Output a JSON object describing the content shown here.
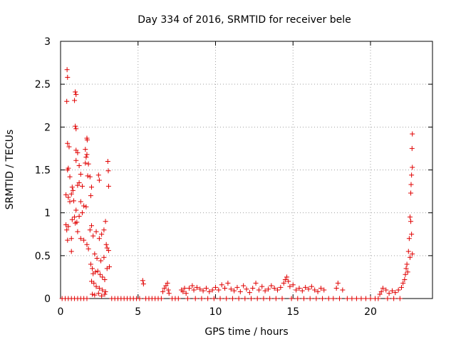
{
  "chart_data": {
    "type": "scatter",
    "title": "Day 334 of 2016, SRMTID for receiver bele",
    "xlabel": "GPS time / hours",
    "ylabel": "SRMTID / TECUs",
    "xlim": [
      0,
      24
    ],
    "ylim": [
      0,
      3
    ],
    "x_ticks": [
      0,
      5,
      10,
      15,
      20
    ],
    "y_ticks": [
      0,
      0.5,
      1,
      1.5,
      2,
      2.5,
      3
    ],
    "x_tick_labels": [
      "0",
      "5",
      "10",
      "15",
      "20"
    ],
    "y_tick_labels": [
      "0",
      "0.5",
      "1",
      "1.5",
      "2",
      "2.5",
      "3"
    ],
    "grid": true,
    "marker": "plus",
    "color": "#e00000",
    "series": [
      {
        "name": "SRMTID",
        "points": [
          [
            0.42,
            2.67
          ],
          [
            0.45,
            2.58
          ],
          [
            0.4,
            2.3
          ],
          [
            0.95,
            2.41
          ],
          [
            1.0,
            2.38
          ],
          [
            0.9,
            2.31
          ],
          [
            0.95,
            2.01
          ],
          [
            1.0,
            1.98
          ],
          [
            0.45,
            1.81
          ],
          [
            0.55,
            1.77
          ],
          [
            1.7,
            1.87
          ],
          [
            1.72,
            1.85
          ],
          [
            0.5,
            1.52
          ],
          [
            0.45,
            1.5
          ],
          [
            0.6,
            1.42
          ],
          [
            0.75,
            1.3
          ],
          [
            0.8,
            1.26
          ],
          [
            0.7,
            1.22
          ],
          [
            0.35,
            1.21
          ],
          [
            0.5,
            1.18
          ],
          [
            0.6,
            1.13
          ],
          [
            0.85,
            1.14
          ],
          [
            1.0,
            1.73
          ],
          [
            1.1,
            1.7
          ],
          [
            1.2,
            1.55
          ],
          [
            1.0,
            1.61
          ],
          [
            1.3,
            1.45
          ],
          [
            1.2,
            1.35
          ],
          [
            1.1,
            1.32
          ],
          [
            1.4,
            1.31
          ],
          [
            1.6,
            1.74
          ],
          [
            1.65,
            1.65
          ],
          [
            1.7,
            1.68
          ],
          [
            1.8,
            1.57
          ],
          [
            1.6,
            1.58
          ],
          [
            1.75,
            1.43
          ],
          [
            1.9,
            1.42
          ],
          [
            2.0,
            1.3
          ],
          [
            1.95,
            1.2
          ],
          [
            1.3,
            1.13
          ],
          [
            1.5,
            1.08
          ],
          [
            1.65,
            1.07
          ],
          [
            1.4,
            1.0
          ],
          [
            1.2,
            0.96
          ],
          [
            1.0,
            1.03
          ],
          [
            0.9,
            0.95
          ],
          [
            0.75,
            0.92
          ],
          [
            0.95,
            0.88
          ],
          [
            1.05,
            0.89
          ],
          [
            0.35,
            0.86
          ],
          [
            0.5,
            0.84
          ],
          [
            0.7,
            0.7
          ],
          [
            0.4,
            0.8
          ],
          [
            0.45,
            0.68
          ],
          [
            0.7,
            0.55
          ],
          [
            1.1,
            0.78
          ],
          [
            1.3,
            0.7
          ],
          [
            1.5,
            0.68
          ],
          [
            1.7,
            0.63
          ],
          [
            1.8,
            0.58
          ],
          [
            1.9,
            0.8
          ],
          [
            2.0,
            0.85
          ],
          [
            2.1,
            0.73
          ],
          [
            2.3,
            0.78
          ],
          [
            2.5,
            0.7
          ],
          [
            2.65,
            0.75
          ],
          [
            2.8,
            0.8
          ],
          [
            2.9,
            0.9
          ],
          [
            2.95,
            0.63
          ],
          [
            3.0,
            0.59
          ],
          [
            3.1,
            0.56
          ],
          [
            3.05,
            1.6
          ],
          [
            3.08,
            1.49
          ],
          [
            3.1,
            1.31
          ],
          [
            2.45,
            1.44
          ],
          [
            2.5,
            1.38
          ],
          [
            2.2,
            0.52
          ],
          [
            2.35,
            0.47
          ],
          [
            2.6,
            0.44
          ],
          [
            2.8,
            0.48
          ],
          [
            1.95,
            0.4
          ],
          [
            2.05,
            0.35
          ],
          [
            2.1,
            0.29
          ],
          [
            2.25,
            0.31
          ],
          [
            2.4,
            0.32
          ],
          [
            2.55,
            0.28
          ],
          [
            2.7,
            0.25
          ],
          [
            2.85,
            0.22
          ],
          [
            3.0,
            0.35
          ],
          [
            3.15,
            0.37
          ],
          [
            2.0,
            0.2
          ],
          [
            2.15,
            0.18
          ],
          [
            2.3,
            0.14
          ],
          [
            2.5,
            0.12
          ],
          [
            2.7,
            0.1
          ],
          [
            2.9,
            0.08
          ],
          [
            2.05,
            0.05
          ],
          [
            2.2,
            0.04
          ],
          [
            2.45,
            0.06
          ],
          [
            2.65,
            0.03
          ],
          [
            2.85,
            0.05
          ],
          [
            5.3,
            0.21
          ],
          [
            5.35,
            0.17
          ],
          [
            6.6,
            0.08
          ],
          [
            6.7,
            0.12
          ],
          [
            6.8,
            0.15
          ],
          [
            6.9,
            0.18
          ],
          [
            6.95,
            0.1
          ],
          [
            7.0,
            0.06
          ],
          [
            7.8,
            0.1
          ],
          [
            7.9,
            0.08
          ],
          [
            8.0,
            0.12
          ],
          [
            8.1,
            0.06
          ],
          [
            8.3,
            0.12
          ],
          [
            8.5,
            0.15
          ],
          [
            8.6,
            0.1
          ],
          [
            8.8,
            0.13
          ],
          [
            9.0,
            0.11
          ],
          [
            9.2,
            0.09
          ],
          [
            9.4,
            0.12
          ],
          [
            9.6,
            0.08
          ],
          [
            9.8,
            0.1
          ],
          [
            10.0,
            0.13
          ],
          [
            10.2,
            0.1
          ],
          [
            10.4,
            0.16
          ],
          [
            10.6,
            0.12
          ],
          [
            10.8,
            0.18
          ],
          [
            11.0,
            0.11
          ],
          [
            11.2,
            0.09
          ],
          [
            11.4,
            0.13
          ],
          [
            11.6,
            0.08
          ],
          [
            11.8,
            0.15
          ],
          [
            12.0,
            0.11
          ],
          [
            12.2,
            0.07
          ],
          [
            12.4,
            0.12
          ],
          [
            12.6,
            0.18
          ],
          [
            12.8,
            0.1
          ],
          [
            13.0,
            0.14
          ],
          [
            13.2,
            0.09
          ],
          [
            13.4,
            0.11
          ],
          [
            13.6,
            0.15
          ],
          [
            13.8,
            0.12
          ],
          [
            14.0,
            0.1
          ],
          [
            14.2,
            0.13
          ],
          [
            14.4,
            0.18
          ],
          [
            14.5,
            0.22
          ],
          [
            14.6,
            0.25
          ],
          [
            14.7,
            0.2
          ],
          [
            14.8,
            0.14
          ],
          [
            15.0,
            0.16
          ],
          [
            15.2,
            0.1
          ],
          [
            15.4,
            0.12
          ],
          [
            15.6,
            0.09
          ],
          [
            15.8,
            0.13
          ],
          [
            16.0,
            0.11
          ],
          [
            16.2,
            0.14
          ],
          [
            16.4,
            0.1
          ],
          [
            16.6,
            0.08
          ],
          [
            16.8,
            0.12
          ],
          [
            17.0,
            0.1
          ],
          [
            17.8,
            0.12
          ],
          [
            17.9,
            0.18
          ],
          [
            18.2,
            0.1
          ],
          [
            20.6,
            0.05
          ],
          [
            20.7,
            0.08
          ],
          [
            20.8,
            0.12
          ],
          [
            21.0,
            0.1
          ],
          [
            21.2,
            0.06
          ],
          [
            21.4,
            0.09
          ],
          [
            21.6,
            0.07
          ],
          [
            21.8,
            0.1
          ],
          [
            22.0,
            0.13
          ],
          [
            22.1,
            0.18
          ],
          [
            22.2,
            0.22
          ],
          [
            22.25,
            0.28
          ],
          [
            22.3,
            0.35
          ],
          [
            22.35,
            0.4
          ],
          [
            22.4,
            0.31
          ],
          [
            22.45,
            0.55
          ],
          [
            22.5,
            0.7
          ],
          [
            22.55,
            0.95
          ],
          [
            22.6,
            0.9
          ],
          [
            22.65,
            0.75
          ],
          [
            22.7,
            0.52
          ],
          [
            22.6,
            1.23
          ],
          [
            22.62,
            1.33
          ],
          [
            22.65,
            1.44
          ],
          [
            22.7,
            1.53
          ],
          [
            22.68,
            1.75
          ],
          [
            22.7,
            1.92
          ],
          [
            22.55,
            0.48
          ],
          [
            0.1,
            0.0
          ],
          [
            0.3,
            0.0
          ],
          [
            0.5,
            0.0
          ],
          [
            0.7,
            0.0
          ],
          [
            0.9,
            0.0
          ],
          [
            1.1,
            0.0
          ],
          [
            1.3,
            0.0
          ],
          [
            1.5,
            0.0
          ],
          [
            1.7,
            0.0
          ],
          [
            3.3,
            0.0
          ],
          [
            3.5,
            0.0
          ],
          [
            3.7,
            0.0
          ],
          [
            3.9,
            0.0
          ],
          [
            4.1,
            0.0
          ],
          [
            4.3,
            0.0
          ],
          [
            4.5,
            0.0
          ],
          [
            4.7,
            0.0
          ],
          [
            4.9,
            0.0
          ],
          [
            5.1,
            0.0
          ],
          [
            5.5,
            0.0
          ],
          [
            5.7,
            0.0
          ],
          [
            5.9,
            0.0
          ],
          [
            6.1,
            0.0
          ],
          [
            6.3,
            0.0
          ],
          [
            6.5,
            0.0
          ],
          [
            7.2,
            0.0
          ],
          [
            7.4,
            0.0
          ],
          [
            7.6,
            0.0
          ],
          [
            8.2,
            0.0
          ],
          [
            8.7,
            0.0
          ],
          [
            9.1,
            0.0
          ],
          [
            9.5,
            0.0
          ],
          [
            9.9,
            0.0
          ],
          [
            10.3,
            0.0
          ],
          [
            10.7,
            0.0
          ],
          [
            11.1,
            0.0
          ],
          [
            11.5,
            0.0
          ],
          [
            11.9,
            0.0
          ],
          [
            12.3,
            0.0
          ],
          [
            12.7,
            0.0
          ],
          [
            13.1,
            0.0
          ],
          [
            13.5,
            0.0
          ],
          [
            13.9,
            0.0
          ],
          [
            14.3,
            0.0
          ],
          [
            14.9,
            0.0
          ],
          [
            15.3,
            0.0
          ],
          [
            15.7,
            0.0
          ],
          [
            16.1,
            0.0
          ],
          [
            16.5,
            0.0
          ],
          [
            16.9,
            0.0
          ],
          [
            17.3,
            0.0
          ],
          [
            17.6,
            0.0
          ],
          [
            18.0,
            0.0
          ],
          [
            18.5,
            0.0
          ],
          [
            18.8,
            0.0
          ],
          [
            19.1,
            0.0
          ],
          [
            19.4,
            0.0
          ],
          [
            19.7,
            0.0
          ],
          [
            20.0,
            0.0
          ],
          [
            20.3,
            0.0
          ],
          [
            20.5,
            0.0
          ],
          [
            21.1,
            0.0
          ],
          [
            21.5,
            0.0
          ],
          [
            21.9,
            0.0
          ]
        ]
      }
    ]
  }
}
